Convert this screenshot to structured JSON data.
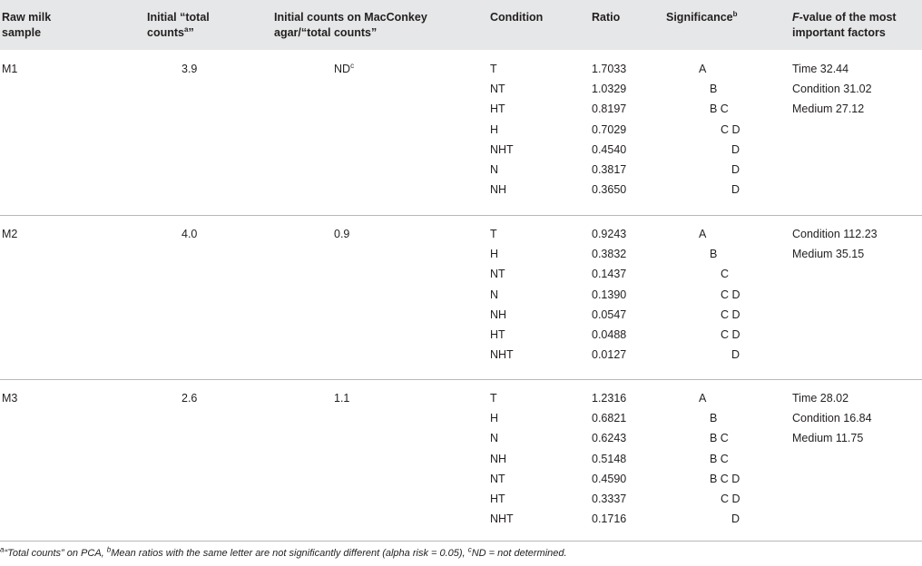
{
  "header": {
    "sample": "Raw milk sample",
    "initial_total_a": "Initial “total counts",
    "initial_total_sup": "a",
    "initial_total_b": "”",
    "macconkey": "Initial counts on MacConkey agar/“total counts”",
    "condition": "Condition",
    "ratio": "Ratio",
    "significance": "Significance",
    "significance_sup": "b",
    "fvalue_italic": "F",
    "fvalue_rest": "-value of the most important factors"
  },
  "groups": [
    {
      "sample": "M1",
      "initial": "3.9",
      "macconkey": "ND",
      "macconkey_sup": "c",
      "rows": [
        {
          "condition": "T",
          "ratio": "1.7033",
          "sig": "A"
        },
        {
          "condition": "NT",
          "ratio": "1.0329",
          "sig": "B"
        },
        {
          "condition": "HT",
          "ratio": "0.8197",
          "sig": "B C"
        },
        {
          "condition": "H",
          "ratio": "0.7029",
          "sig": "C D"
        },
        {
          "condition": "NHT",
          "ratio": "0.4540",
          "sig": "D"
        },
        {
          "condition": "N",
          "ratio": "0.3817",
          "sig": "D"
        },
        {
          "condition": "NH",
          "ratio": "0.3650",
          "sig": "D"
        }
      ],
      "factors": [
        "Time 32.44",
        "Condition 31.02",
        "Medium 27.12"
      ]
    },
    {
      "sample": "M2",
      "initial": "4.0",
      "macconkey": "0.9",
      "macconkey_sup": "",
      "rows": [
        {
          "condition": "T",
          "ratio": "0.9243",
          "sig": "A"
        },
        {
          "condition": "H",
          "ratio": "0.3832",
          "sig": "B"
        },
        {
          "condition": "NT",
          "ratio": "0.1437",
          "sig": "C"
        },
        {
          "condition": "N",
          "ratio": "0.1390",
          "sig": "C D"
        },
        {
          "condition": "NH",
          "ratio": "0.0547",
          "sig": "C D"
        },
        {
          "condition": "HT",
          "ratio": "0.0488",
          "sig": "C D"
        },
        {
          "condition": "NHT",
          "ratio": "0.0127",
          "sig": "D"
        }
      ],
      "factors": [
        "Condition 112.23",
        "Medium 35.15"
      ]
    },
    {
      "sample": "M3",
      "initial": "2.6",
      "macconkey": "1.1",
      "macconkey_sup": "",
      "rows": [
        {
          "condition": "T",
          "ratio": "1.2316",
          "sig": "A"
        },
        {
          "condition": "H",
          "ratio": "0.6821",
          "sig": "B"
        },
        {
          "condition": "N",
          "ratio": "0.6243",
          "sig": "B C"
        },
        {
          "condition": "NH",
          "ratio": "0.5148",
          "sig": "B C"
        },
        {
          "condition": "NT",
          "ratio": "0.4590",
          "sig": "B C D"
        },
        {
          "condition": "HT",
          "ratio": "0.3337",
          "sig": "C D"
        },
        {
          "condition": "NHT",
          "ratio": "0.1716",
          "sig": "D"
        }
      ],
      "factors": [
        "Time 28.02",
        "Condition 16.84",
        "Medium 11.75"
      ]
    }
  ],
  "footnote": {
    "a_mark": "a",
    "a_text": "“Total counts” on PCA, ",
    "b_mark": "b",
    "b_text": "Mean ratios with the same letter are not significantly different (alpha risk = 0.05), ",
    "c_mark": "c",
    "c_text": "ND = not determined."
  }
}
